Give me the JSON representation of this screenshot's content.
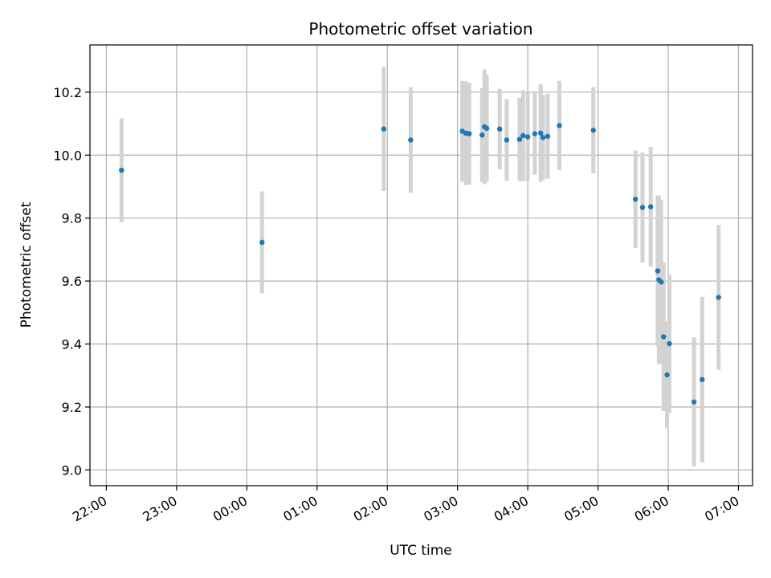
{
  "chart_data": {
    "type": "scatter",
    "title": "Photometric offset variation",
    "xlabel": "UTC time",
    "ylabel": "Photometric offset",
    "x_axis": "time",
    "x_ticks": [
      "22:00",
      "23:00",
      "00:00",
      "01:00",
      "02:00",
      "03:00",
      "04:00",
      "05:00",
      "06:00",
      "07:00"
    ],
    "xlim": [
      "21:46",
      "07:12"
    ],
    "ylim": [
      8.95,
      10.35
    ],
    "y_ticks": [
      9.0,
      9.2,
      9.4,
      9.6,
      9.8,
      10.0,
      10.2
    ],
    "grid": true,
    "colors": {
      "points": "#1f77b4",
      "errorbars": "#d3d3d3",
      "grid": "#b0b0b0"
    },
    "points": [
      {
        "x": "22:13",
        "y": 9.952,
        "err": 0.165
      },
      {
        "x": "00:13",
        "y": 9.723,
        "err": 0.162
      },
      {
        "x": "01:57",
        "y": 10.083,
        "err": 0.197
      },
      {
        "x": "02:20",
        "y": 10.048,
        "err": 0.168
      },
      {
        "x": "03:04",
        "y": 10.076,
        "err": 0.16
      },
      {
        "x": "03:07",
        "y": 10.07,
        "err": 0.165
      },
      {
        "x": "03:10",
        "y": 10.068,
        "err": 0.162
      },
      {
        "x": "03:21",
        "y": 10.064,
        "err": 0.15
      },
      {
        "x": "03:23",
        "y": 10.09,
        "err": 0.182
      },
      {
        "x": "03:25",
        "y": 10.085,
        "err": 0.17
      },
      {
        "x": "03:36",
        "y": 10.083,
        "err": 0.128
      },
      {
        "x": "03:42",
        "y": 10.048,
        "err": 0.13
      },
      {
        "x": "03:53",
        "y": 10.05,
        "err": 0.132
      },
      {
        "x": "03:56",
        "y": 10.062,
        "err": 0.145
      },
      {
        "x": "04:00",
        "y": 10.058,
        "err": 0.14
      },
      {
        "x": "04:06",
        "y": 10.068,
        "err": 0.13
      },
      {
        "x": "04:11",
        "y": 10.07,
        "err": 0.155
      },
      {
        "x": "04:13",
        "y": 10.056,
        "err": 0.135
      },
      {
        "x": "04:17",
        "y": 10.06,
        "err": 0.135
      },
      {
        "x": "04:27",
        "y": 10.094,
        "err": 0.142
      },
      {
        "x": "04:56",
        "y": 10.079,
        "err": 0.137
      },
      {
        "x": "05:32",
        "y": 9.86,
        "err": 0.155
      },
      {
        "x": "05:38",
        "y": 9.834,
        "err": 0.175
      },
      {
        "x": "05:45",
        "y": 9.836,
        "err": 0.19
      },
      {
        "x": "05:51",
        "y": 9.632,
        "err": 0.24
      },
      {
        "x": "05:52",
        "y": 9.604,
        "err": 0.268
      },
      {
        "x": "05:54",
        "y": 9.597,
        "err": 0.26
      },
      {
        "x": "05:56",
        "y": 9.423,
        "err": 0.236
      },
      {
        "x": "05:59",
        "y": 9.302,
        "err": 0.17
      },
      {
        "x": "06:01",
        "y": 9.401,
        "err": 0.22
      },
      {
        "x": "06:22",
        "y": 9.216,
        "err": 0.205
      },
      {
        "x": "06:29",
        "y": 9.287,
        "err": 0.263
      },
      {
        "x": "06:43",
        "y": 9.548,
        "err": 0.23
      }
    ]
  }
}
